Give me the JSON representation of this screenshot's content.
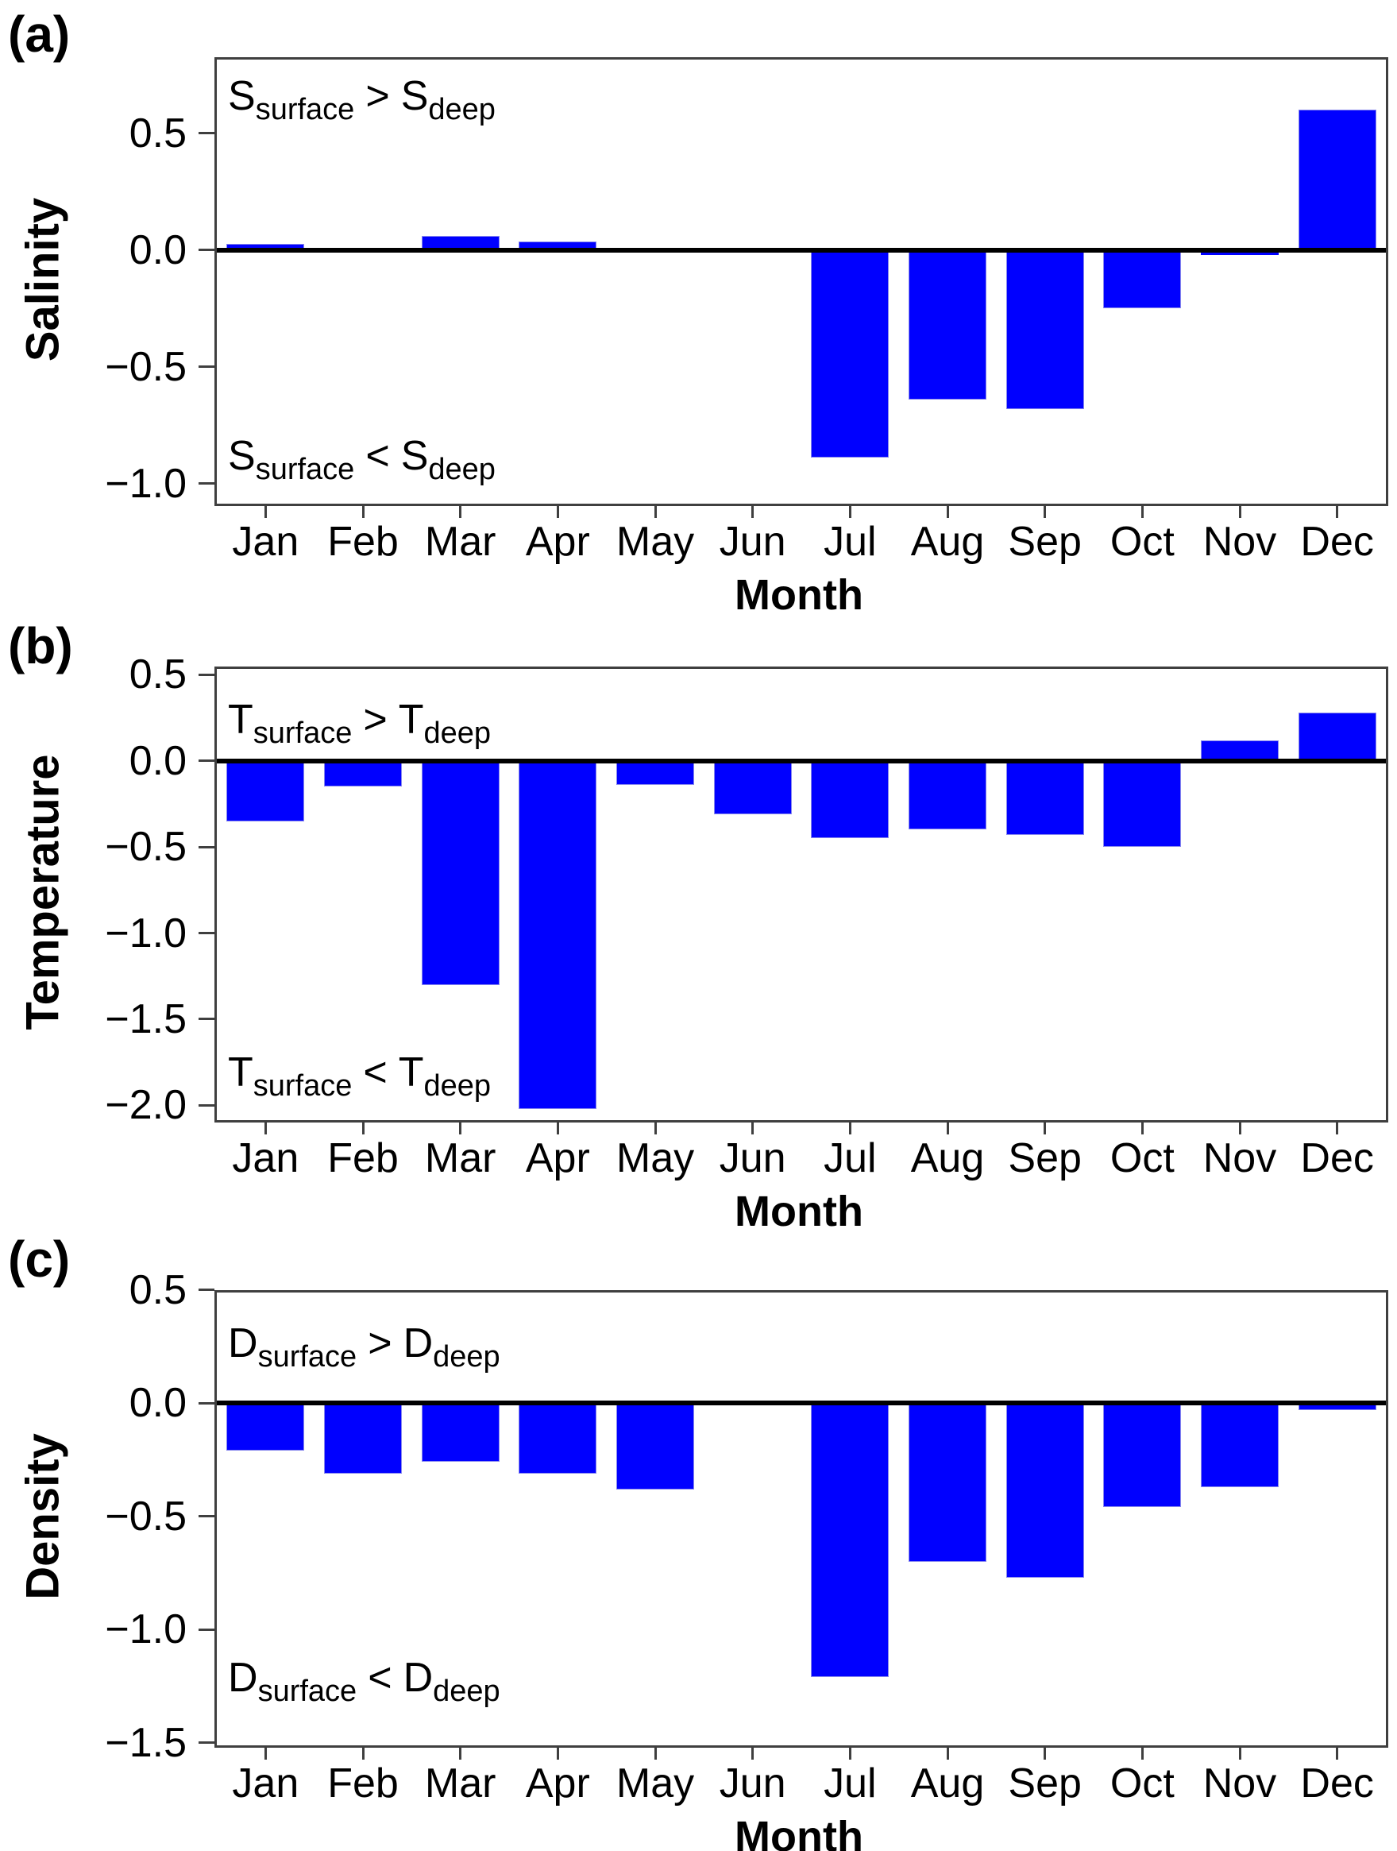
{
  "figure": {
    "background": "#ffffff",
    "bar_color": "#0000ff",
    "zero_line_color": "#000000",
    "axis_color": "#3f3f3f",
    "xlabel": "Month",
    "months": [
      "Jan",
      "Feb",
      "Mar",
      "Apr",
      "May",
      "Jun",
      "Jul",
      "Aug",
      "Sep",
      "Oct",
      "Nov",
      "Dec"
    ]
  },
  "chart_data": [
    {
      "type": "bar",
      "panel_label": "(a)",
      "title": "",
      "ylabel": "Salinity",
      "xlabel": "Month",
      "categories": [
        "Jan",
        "Feb",
        "Mar",
        "Apr",
        "May",
        "Jun",
        "Jul",
        "Aug",
        "Sep",
        "Oct",
        "Nov",
        "Dec"
      ],
      "values": [
        0.025,
        0.01,
        0.06,
        0.035,
        -0.011,
        0.0,
        -0.89,
        -0.64,
        -0.68,
        -0.25,
        -0.02,
        0.6
      ],
      "ylim": [
        -1.086,
        0.815
      ],
      "yticks": [
        0.5,
        0.0,
        -0.5,
        -1.0
      ],
      "ytick_labels": [
        "0.5",
        "0.0",
        "−0.5",
        "−1.0"
      ],
      "grid": false,
      "legend": "none",
      "bar_color": "#0000ff",
      "annotations": {
        "above": {
          "sym1": "S",
          "sub1": "surface",
          "op": ">",
          "sym2": "S",
          "sub2": "deep"
        },
        "below": {
          "sym1": "S",
          "sub1": "surface",
          "op": "<",
          "sym2": "S",
          "sub2": "deep"
        }
      }
    },
    {
      "type": "bar",
      "panel_label": "(b)",
      "title": "",
      "ylabel": "Temperature",
      "xlabel": "Month",
      "categories": [
        "Jan",
        "Feb",
        "Mar",
        "Apr",
        "May",
        "Jun",
        "Jul",
        "Aug",
        "Sep",
        "Oct",
        "Nov",
        "Dec"
      ],
      "values": [
        -0.35,
        -0.15,
        -1.3,
        -2.02,
        -0.14,
        -0.31,
        -0.45,
        -0.4,
        -0.43,
        -0.5,
        0.12,
        0.28
      ],
      "ylim": [
        -2.086,
        0.534
      ],
      "yticks": [
        0.5,
        0.0,
        -0.5,
        -1.0,
        -1.5,
        -2.0
      ],
      "ytick_labels": [
        "0.5",
        "0.0",
        "−0.5",
        "−1.0",
        "−1.5",
        "−2.0"
      ],
      "grid": false,
      "legend": "none",
      "bar_color": "#0000ff",
      "annotations": {
        "above": {
          "sym1": "T",
          "sub1": "surface",
          "op": ">",
          "sym2": "T",
          "sub2": "deep"
        },
        "below": {
          "sym1": "T",
          "sub1": "surface",
          "op": "<",
          "sym2": "T",
          "sub2": "deep"
        }
      }
    },
    {
      "type": "bar",
      "panel_label": "(c)",
      "title": "",
      "ylabel": "Density",
      "xlabel": "Month",
      "categories": [
        "Jan",
        "Feb",
        "Mar",
        "Apr",
        "May",
        "Jun",
        "Jul",
        "Aug",
        "Sep",
        "Oct",
        "Nov",
        "Dec"
      ],
      "values": [
        -0.21,
        -0.31,
        -0.26,
        -0.31,
        -0.38,
        0.0,
        -1.21,
        -0.7,
        -0.77,
        -0.46,
        -0.37,
        -0.03
      ],
      "ylim": [
        -1.511,
        0.489
      ],
      "yticks": [
        0.5,
        0.0,
        -0.5,
        -1.0,
        -1.5
      ],
      "ytick_labels": [
        "0.5",
        "0.0",
        "−0.5",
        "−1.0",
        "−1.5"
      ],
      "grid": false,
      "legend": "none",
      "bar_color": "#0000ff",
      "annotations": {
        "above": {
          "sym1": "D",
          "sub1": "surface",
          "op": ">",
          "sym2": "D",
          "sub2": "deep"
        },
        "below": {
          "sym1": "D",
          "sub1": "surface",
          "op": "<",
          "sym2": "D",
          "sub2": "deep"
        }
      }
    }
  ]
}
